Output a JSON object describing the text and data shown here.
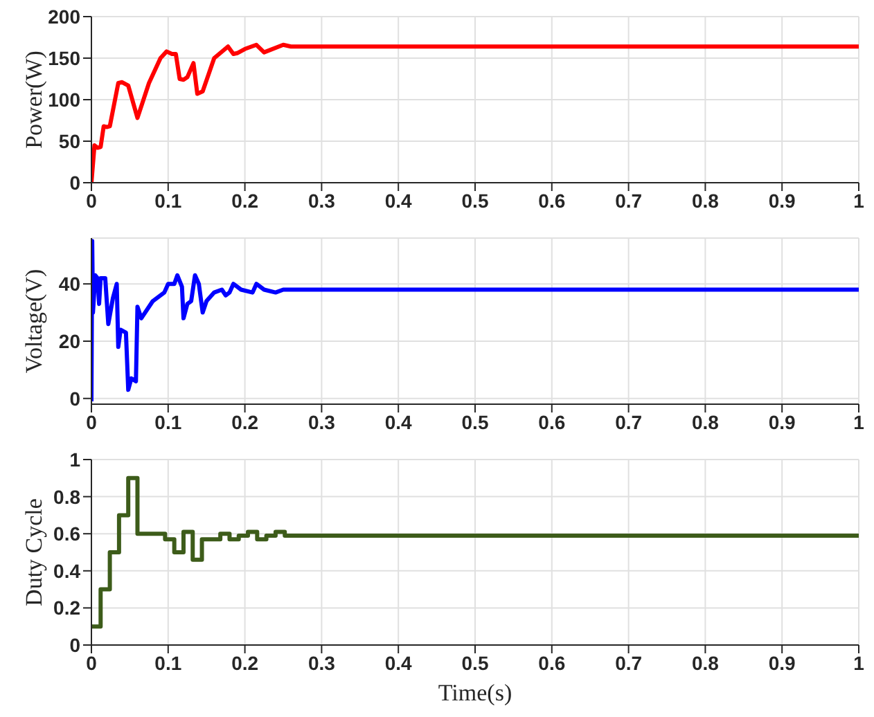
{
  "chart_data": [
    {
      "type": "line",
      "ylabel": "Power(W)",
      "xlim": [
        0,
        1
      ],
      "xticks": [
        0,
        0.1,
        0.2,
        0.3,
        0.4,
        0.5,
        0.6,
        0.7,
        0.8,
        0.9,
        1
      ],
      "ylim": [
        0,
        200
      ],
      "yticks": [
        0,
        50,
        100,
        150,
        200
      ],
      "grid": true,
      "line_style": "solid",
      "marker": "none",
      "series": [
        {
          "color": "#ff0000",
          "x": [
            0,
            0.004,
            0.008,
            0.012,
            0.016,
            0.02,
            0.024,
            0.035,
            0.04,
            0.048,
            0.06,
            0.075,
            0.09,
            0.098,
            0.105,
            0.11,
            0.115,
            0.12,
            0.125,
            0.133,
            0.138,
            0.145,
            0.16,
            0.178,
            0.185,
            0.19,
            0.2,
            0.215,
            0.225,
            0.25,
            0.26,
            1
          ],
          "values": [
            0,
            45,
            42,
            43,
            68,
            67,
            68,
            120,
            121,
            117,
            78,
            120,
            150,
            158,
            155,
            155,
            125,
            124,
            127,
            144,
            107,
            110,
            150,
            164,
            155,
            156,
            161,
            166,
            157,
            166,
            164,
            164
          ]
        }
      ]
    },
    {
      "type": "line",
      "ylabel": "Voltage(V)",
      "xlim": [
        0,
        1
      ],
      "xticks": [
        0,
        0.1,
        0.2,
        0.3,
        0.4,
        0.5,
        0.6,
        0.7,
        0.8,
        0.9,
        1
      ],
      "ylim": [
        -2,
        56
      ],
      "yticks": [
        0,
        20,
        40
      ],
      "grid": true,
      "line_style": "solid",
      "marker": "none",
      "series": [
        {
          "color": "#0000ff",
          "x": [
            0,
            0.001,
            0.002,
            0.005,
            0.008,
            0.01,
            0.012,
            0.018,
            0.022,
            0.028,
            0.033,
            0.035,
            0.038,
            0.045,
            0.048,
            0.052,
            0.058,
            0.06,
            0.065,
            0.08,
            0.095,
            0.1,
            0.108,
            0.112,
            0.118,
            0.12,
            0.125,
            0.13,
            0.135,
            0.14,
            0.145,
            0.15,
            0.16,
            0.17,
            0.175,
            0.18,
            0.185,
            0.195,
            0.21,
            0.215,
            0.225,
            0.24,
            0.25,
            0.26,
            1
          ],
          "values": [
            -1,
            55,
            30,
            43,
            42,
            33,
            42,
            42,
            26,
            35,
            40,
            18,
            24,
            23,
            3,
            7,
            6,
            32,
            28,
            34,
            37,
            40,
            40,
            43,
            39,
            28,
            33,
            34,
            43,
            40,
            30,
            34,
            37,
            38,
            36,
            37,
            40,
            38,
            37,
            40,
            38,
            37,
            38,
            38,
            38
          ]
        }
      ]
    },
    {
      "type": "step",
      "ylabel": "Duty Cycle",
      "xlabel": "Time(s)",
      "xlim": [
        0,
        1
      ],
      "xticks": [
        0,
        0.1,
        0.2,
        0.3,
        0.4,
        0.5,
        0.6,
        0.7,
        0.8,
        0.9,
        1
      ],
      "ylim": [
        0,
        1
      ],
      "yticks": [
        0,
        0.2,
        0.4,
        0.6,
        0.8,
        1
      ],
      "grid": true,
      "line_style": "solid",
      "marker": "none",
      "series": [
        {
          "color": "#3d5c1a",
          "x": [
            0,
            0.012,
            0.024,
            0.036,
            0.048,
            0.06,
            0.096,
            0.108,
            0.12,
            0.132,
            0.144,
            0.168,
            0.18,
            0.192,
            0.204,
            0.216,
            0.228,
            0.24,
            0.252,
            1
          ],
          "values": [
            0.1,
            0.3,
            0.5,
            0.7,
            0.9,
            0.6,
            0.57,
            0.5,
            0.61,
            0.46,
            0.57,
            0.6,
            0.57,
            0.59,
            0.61,
            0.57,
            0.59,
            0.61,
            0.59,
            0.59
          ]
        }
      ]
    }
  ]
}
